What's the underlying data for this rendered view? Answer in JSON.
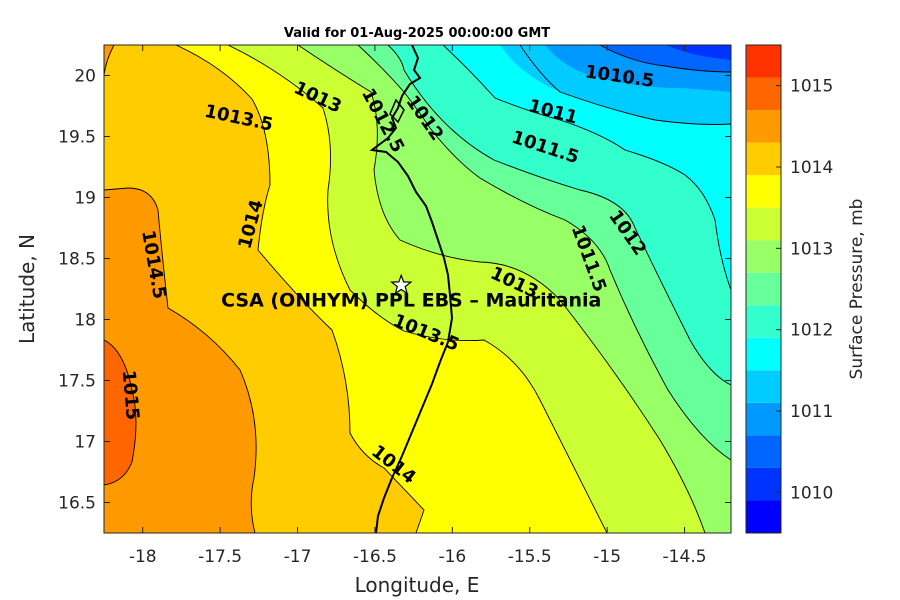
{
  "chart_data": {
    "type": "heatmap",
    "subtype": "filled-contour-map",
    "title": "Valid for 01-Aug-2025 00:00:00 GMT",
    "xlabel": "Longitude, E",
    "ylabel": "Latitude, N",
    "xlim": [
      -18.25,
      -14.2
    ],
    "ylim": [
      16.25,
      20.25
    ],
    "x_ticks": [
      -18,
      -17.5,
      -17,
      -16.5,
      -16,
      -15.5,
      -15,
      -14.5
    ],
    "x_tick_labels": [
      "-18",
      "-17.5",
      "-17",
      "-16.5",
      "-16",
      "-15.5",
      "-15",
      "-14.5"
    ],
    "y_ticks": [
      16.5,
      17,
      17.5,
      18,
      18.5,
      19,
      19.5,
      20
    ],
    "y_tick_labels": [
      "16.5",
      "17",
      "17.5",
      "18",
      "18.5",
      "19",
      "19.5",
      "20"
    ],
    "grid": false,
    "colorbar": {
      "label": "Surface Pressure, mb",
      "range": [
        1009.5,
        1015.5
      ],
      "ticks": [
        1010,
        1011,
        1012,
        1013,
        1014,
        1015
      ],
      "tick_labels": [
        "1010",
        "1011",
        "1012",
        "1013",
        "1014",
        "1015"
      ],
      "levels": [
        1009.5,
        1009.9,
        1010.3,
        1010.7,
        1011.1,
        1011.5,
        1011.9,
        1012.3,
        1012.7,
        1013.1,
        1013.5,
        1013.9,
        1014.3,
        1014.7,
        1015.1,
        1015.5
      ],
      "colors": [
        "#0000ff",
        "#0033ff",
        "#0066ff",
        "#0099ff",
        "#00ccff",
        "#00ffff",
        "#33ffcc",
        "#66ff99",
        "#99ff66",
        "#ccff33",
        "#ffff00",
        "#ffcc00",
        "#ff9900",
        "#ff6600",
        "#ff3300"
      ]
    },
    "contour_levels": [
      1010.5,
      1011,
      1011.5,
      1012,
      1012.5,
      1013,
      1013.5,
      1014,
      1014.5,
      1015
    ],
    "contour_labels": [
      {
        "text": "1010.5",
        "lon": -14.92,
        "lat": 19.99,
        "angle": 8
      },
      {
        "text": "1011",
        "lon": -15.35,
        "lat": 19.7,
        "angle": 15
      },
      {
        "text": "1011.5",
        "lon": -15.4,
        "lat": 19.41,
        "angle": 18
      },
      {
        "text": "1012",
        "lon": -16.18,
        "lat": 19.65,
        "angle": 55
      },
      {
        "text": "1012.5",
        "lon": -16.45,
        "lat": 19.63,
        "angle": 62
      },
      {
        "text": "1012",
        "lon": -14.87,
        "lat": 18.71,
        "angle": 55
      },
      {
        "text": "1011.5",
        "lon": -15.12,
        "lat": 18.5,
        "angle": 70
      },
      {
        "text": "1013",
        "lon": -16.87,
        "lat": 19.82,
        "angle": 25
      },
      {
        "text": "1013.5",
        "lon": -17.38,
        "lat": 19.65,
        "angle": 12
      },
      {
        "text": "1014",
        "lon": -17.3,
        "lat": 18.78,
        "angle": -75
      },
      {
        "text": "1014.5",
        "lon": -17.93,
        "lat": 18.45,
        "angle": 80
      },
      {
        "text": "1015",
        "lon": -18.08,
        "lat": 17.38,
        "angle": 85
      },
      {
        "text": "1013",
        "lon": -15.6,
        "lat": 18.3,
        "angle": 25
      },
      {
        "text": "1013.5",
        "lon": -16.17,
        "lat": 17.89,
        "angle": 22
      },
      {
        "text": "1014",
        "lon": -16.38,
        "lat": 16.81,
        "angle": 38
      }
    ],
    "site": {
      "name": "CSA (ONHYM) PPL EBS  – Mauritania",
      "lon": -16.33,
      "lat": 18.28,
      "marker": "white star"
    }
  }
}
